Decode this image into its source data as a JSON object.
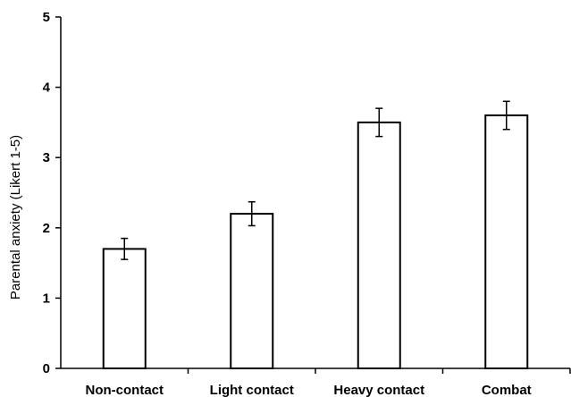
{
  "chart_data": {
    "type": "bar",
    "title": "",
    "xlabel": "",
    "ylabel": "Parental anxiety (Likert 1-5)",
    "categories": [
      "Non-contact",
      "Light contact",
      "Heavy contact",
      "Combat"
    ],
    "values": [
      1.7,
      2.2,
      3.5,
      3.6
    ],
    "error": [
      0.15,
      0.17,
      0.2,
      0.2
    ],
    "ylim": [
      0,
      5
    ],
    "yticks": [
      0,
      1,
      2,
      3,
      4,
      5
    ],
    "grid": false,
    "legend": "none",
    "bar_fill": "#ffffff",
    "bar_stroke": "#000000"
  }
}
